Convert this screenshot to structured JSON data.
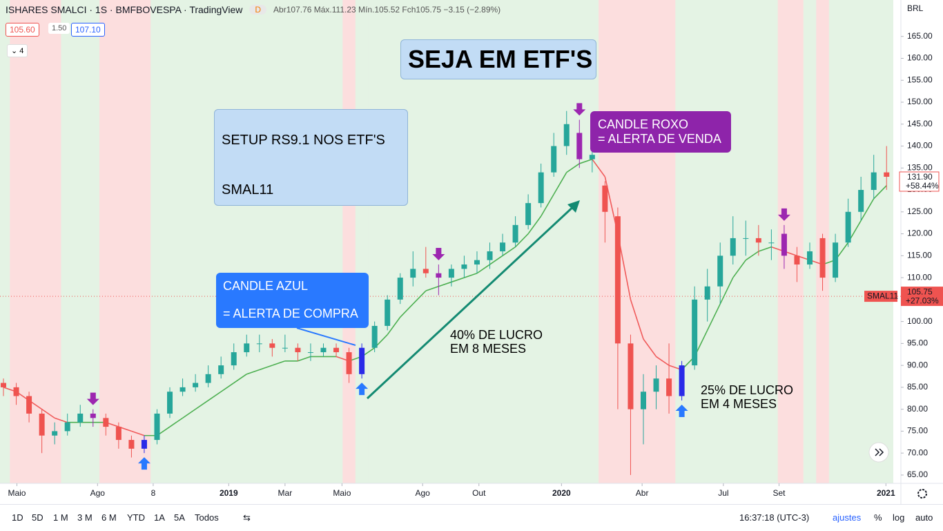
{
  "header": {
    "symbol": "ISHARES SMALCI · 1S · BMFBOVESPA · TradingView",
    "badge": "D",
    "ohlc": "Abr107.76 Máx.111.23 Mín.105.52 Fch105.75 −3.15 (−2.89%)",
    "bid": "105.60",
    "spread": "1.50",
    "ask": "107.10",
    "indicators": "4"
  },
  "chart_data": {
    "type": "candlestick",
    "currency": "BRL",
    "x": [
      0,
      2,
      4,
      6,
      8,
      10,
      12,
      14,
      16,
      18,
      20,
      22,
      24,
      26,
      28,
      30,
      32,
      34,
      36,
      38,
      40,
      42,
      44,
      46,
      48,
      50,
      52,
      54,
      56,
      58,
      60,
      62,
      64,
      66,
      68,
      70,
      72,
      74,
      76,
      78,
      80,
      82,
      84,
      86,
      88,
      90,
      92,
      94,
      96,
      98,
      100,
      102,
      104,
      106,
      108,
      110,
      112,
      114,
      116,
      118,
      120,
      122,
      124,
      126,
      128,
      130,
      132,
      134,
      136,
      138
    ],
    "candles": [
      [
        86,
        87,
        83,
        85
      ],
      [
        85,
        86,
        81,
        83
      ],
      [
        83,
        84,
        77,
        79
      ],
      [
        79,
        80,
        70,
        74
      ],
      [
        74,
        77,
        72,
        75
      ],
      [
        75,
        79,
        74,
        77
      ],
      [
        77,
        81,
        76,
        79
      ],
      [
        79,
        80,
        76,
        78
      ],
      [
        78,
        79,
        74,
        76
      ],
      [
        76,
        77,
        71,
        73
      ],
      [
        73,
        74,
        69,
        71
      ],
      [
        71,
        74,
        70,
        73
      ],
      [
        73,
        80,
        72,
        79
      ],
      [
        79,
        85,
        78,
        84
      ],
      [
        84,
        87,
        83,
        85
      ],
      [
        85,
        88,
        84,
        86
      ],
      [
        86,
        90,
        85,
        88
      ],
      [
        88,
        92,
        87,
        90
      ],
      [
        90,
        95,
        89,
        93
      ],
      [
        93,
        97,
        92,
        95
      ],
      [
        95,
        97,
        93,
        95
      ],
      [
        95,
        96,
        92,
        94
      ],
      [
        94,
        97,
        93,
        94
      ],
      [
        94,
        95,
        91,
        93
      ],
      [
        93,
        95,
        91,
        93
      ],
      [
        93,
        95,
        92,
        94
      ],
      [
        94,
        95,
        92,
        93
      ],
      [
        93,
        94,
        86,
        88
      ],
      [
        88,
        95,
        87,
        94
      ],
      [
        94,
        100,
        93,
        99
      ],
      [
        99,
        106,
        98,
        105
      ],
      [
        105,
        111,
        104,
        110
      ],
      [
        110,
        116,
        108,
        112
      ],
      [
        112,
        117,
        110,
        111
      ],
      [
        111,
        113,
        106,
        110
      ],
      [
        110,
        113,
        108,
        112
      ],
      [
        112,
        115,
        110,
        113
      ],
      [
        113,
        116,
        111,
        114
      ],
      [
        114,
        118,
        112,
        116
      ],
      [
        116,
        120,
        115,
        118
      ],
      [
        118,
        124,
        117,
        122
      ],
      [
        122,
        129,
        121,
        127
      ],
      [
        127,
        136,
        126,
        134
      ],
      [
        134,
        143,
        133,
        140
      ],
      [
        140,
        148,
        138,
        145
      ],
      [
        143,
        146,
        135,
        137
      ],
      [
        137,
        141,
        134,
        138
      ],
      [
        131,
        132,
        118,
        125
      ],
      [
        124,
        126,
        80,
        95
      ],
      [
        95,
        97,
        65,
        80
      ],
      [
        80,
        88,
        72,
        84
      ],
      [
        84,
        90,
        80,
        87
      ],
      [
        87,
        95,
        79,
        83
      ],
      [
        83,
        91,
        82,
        90
      ],
      [
        90,
        108,
        89,
        105
      ],
      [
        105,
        112,
        100,
        108
      ],
      [
        108,
        118,
        104,
        115
      ],
      [
        115,
        124,
        113,
        119
      ],
      [
        119,
        123,
        115,
        119
      ],
      [
        119,
        122,
        115,
        118
      ],
      [
        118,
        121,
        114,
        118
      ],
      [
        120,
        122,
        112,
        115
      ],
      [
        115,
        117,
        109,
        113
      ],
      [
        113,
        118,
        112,
        116
      ],
      [
        119,
        120,
        107,
        110
      ],
      [
        110,
        120,
        109,
        118
      ],
      [
        118,
        128,
        117,
        125
      ],
      [
        125,
        133,
        123,
        130
      ],
      [
        130,
        138,
        128,
        134
      ],
      [
        134,
        140,
        130,
        133
      ]
    ],
    "ma": [
      85,
      84,
      82,
      80,
      78,
      77,
      77,
      77,
      77,
      76,
      75,
      74,
      74,
      76,
      78,
      80,
      82,
      84,
      86,
      88,
      89,
      90,
      91,
      91,
      92,
      92,
      92,
      91,
      92,
      94,
      97,
      101,
      104,
      107,
      108,
      109,
      110,
      111,
      113,
      115,
      117,
      120,
      124,
      129,
      134,
      136,
      137,
      133,
      120,
      105,
      96,
      92,
      90,
      89,
      92,
      98,
      104,
      110,
      114,
      116,
      117,
      116,
      115,
      114,
      113,
      114,
      118,
      123,
      128,
      131
    ],
    "buy_signals": [
      11,
      28,
      53
    ],
    "sell_signals": [
      7,
      34,
      45,
      61
    ],
    "colors": {
      "up": "#26a69a",
      "down": "#ef5350",
      "buy": "#2a2ae8",
      "sell": "#9c27b0",
      "ma_up": "#4caf50",
      "ma_down": "#f05a5a",
      "band_up": "#e4f3e4",
      "band_down": "#fcdede"
    },
    "xlim": [
      -0.54,
      139.7
    ],
    "ylim": [
      63.1,
      173.3
    ],
    "yticks": [
      {
        "value": 65,
        "label": "65.00"
      },
      {
        "value": 70,
        "label": "70.00"
      },
      {
        "value": 75,
        "label": "75.00"
      },
      {
        "value": 80,
        "label": "80.00"
      },
      {
        "value": 85,
        "label": "85.00"
      },
      {
        "value": 90,
        "label": "90.00"
      },
      {
        "value": 95,
        "label": "95.00"
      },
      {
        "value": 100,
        "label": "100.00"
      },
      {
        "value": 105,
        "label": "105.00"
      },
      {
        "value": 110,
        "label": "110.00"
      },
      {
        "value": 115,
        "label": "115.00"
      },
      {
        "value": 120,
        "label": "120.00"
      },
      {
        "value": 125,
        "label": "125.00"
      },
      {
        "value": 130,
        "label": "130.00"
      },
      {
        "value": 135,
        "label": "135.00"
      },
      {
        "value": 140,
        "label": "140.00"
      },
      {
        "value": 145,
        "label": "145.00"
      },
      {
        "value": 150,
        "label": "150.00"
      },
      {
        "value": 155,
        "label": "155.00"
      },
      {
        "value": 160,
        "label": "160.00"
      },
      {
        "value": 165,
        "label": "165.00"
      }
    ],
    "xticks": [
      {
        "value": 2.1,
        "label": "Maio"
      },
      {
        "value": 14.7,
        "label": "Ago"
      },
      {
        "value": 23.4,
        "label": "8"
      },
      {
        "value": 35.2,
        "label": "2019"
      },
      {
        "value": 44,
        "label": "Mar"
      },
      {
        "value": 52.9,
        "label": "Maio"
      },
      {
        "value": 65.5,
        "label": "Ago"
      },
      {
        "value": 74.3,
        "label": "Out"
      },
      {
        "value": 87.2,
        "label": "2020"
      },
      {
        "value": 99.8,
        "label": "Abr"
      },
      {
        "value": 112.5,
        "label": "Jul"
      },
      {
        "value": 121.2,
        "label": "Set"
      },
      {
        "value": 137.9,
        "label": "2021"
      }
    ],
    "last_price": {
      "value": 131.9,
      "label": "131.90",
      "change": "+58.44%"
    },
    "marker": {
      "name": "SMAL11",
      "value": 105.75,
      "label": "105.75",
      "change": "+27.03%"
    },
    "annotations": {
      "title": "SEJA EM ETF'S",
      "setup": "SETUP RS9.1 NOS ETF'S",
      "ticker": "SMAL11",
      "blue_1": "CANDLE AZUL",
      "blue_2": "= ALERTA DE COMPRA",
      "purple_1": "CANDLE ROXO",
      "purple_2": "= ALERTA DE VENDA",
      "gain1_1": "40% DE LUCRO",
      "gain1_2": "EM 8 MESES",
      "gain2_1": "25% DE LUCRO",
      "gain2_2": "EM 4 MESES"
    }
  },
  "toolbar": {
    "ranges": [
      "1D",
      "5D",
      "1 M",
      "3 M",
      "6 M",
      "YTD",
      "1A",
      "5A",
      "Todos"
    ],
    "time": "16:37:18 (UTC-3)",
    "options": [
      "ajustes",
      "%",
      "log",
      "auto"
    ]
  }
}
